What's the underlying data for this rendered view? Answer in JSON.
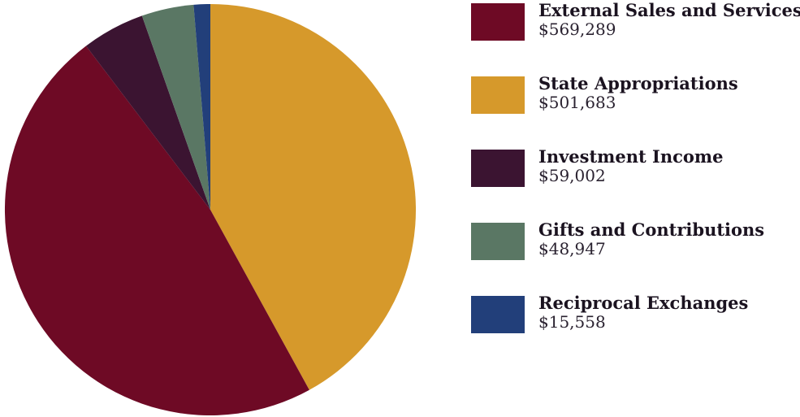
{
  "chart_data": {
    "type": "pie",
    "title": "",
    "slices": [
      {
        "name": "External Sales and Services",
        "value": 569289,
        "value_label": "$569,289",
        "color": "#6e0a25"
      },
      {
        "name": "State Appropriations",
        "value": 501683,
        "value_label": "$501,683",
        "color": "#d6992b"
      },
      {
        "name": "Investment Income",
        "value": 59002,
        "value_label": "$59,002",
        "color": "#3b1431"
      },
      {
        "name": "Gifts and Contributions",
        "value": 48947,
        "value_label": "$48,947",
        "color": "#5a7764"
      },
      {
        "name": "Reciprocal Exchanges",
        "value": 15558,
        "value_label": "$15,558",
        "color": "#223f7a"
      }
    ],
    "legend_position": "right"
  }
}
